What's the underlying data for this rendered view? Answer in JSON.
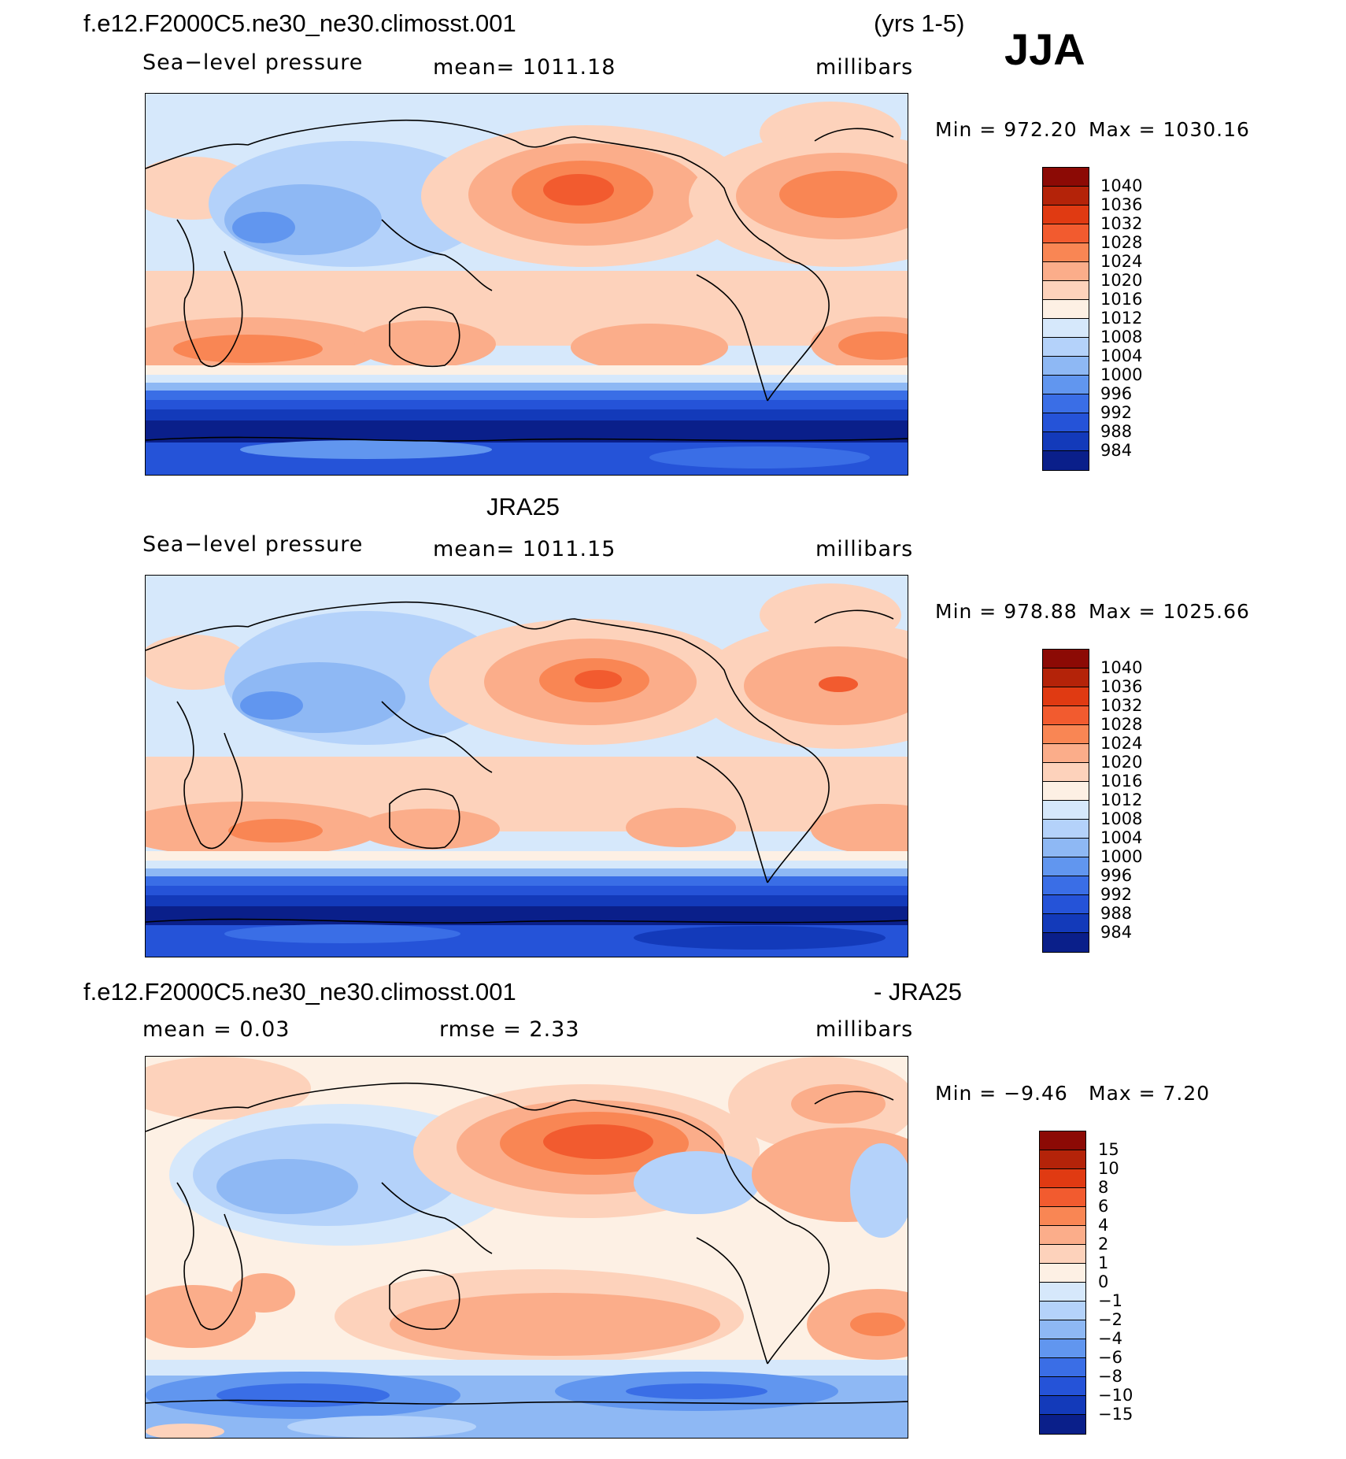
{
  "header": {
    "case_name": "f.e12.F2000C5.ne30_ne30.climosst.001",
    "years": "(yrs 1-5)",
    "season": "JJA"
  },
  "panels": [
    {
      "id": "model",
      "title_left": "",
      "title_right": "",
      "subtitle_left": "Sea−level pressure",
      "subtitle_mid": "mean=  1011.18",
      "units": "millibars",
      "min_label": "Min  =  972.20",
      "max_label": "Max  =  1030.16",
      "scale": "abs"
    },
    {
      "id": "obs",
      "title_left": "",
      "title_right": "",
      "center_title": "JRA25",
      "subtitle_left": "Sea−level pressure",
      "subtitle_mid": "mean=  1011.15",
      "units": "millibars",
      "min_label": "Min  =  978.88",
      "max_label": "Max  =  1025.66",
      "scale": "abs"
    },
    {
      "id": "diff",
      "title_left": "f.e12.F2000C5.ne30_ne30.climosst.001",
      "title_right": "- JRA25",
      "subtitle_left": "mean  =     0.03",
      "subtitle_mid": "rmse  =     2.33",
      "units": "millibars",
      "min_label": "Min  =    −9.46",
      "max_label": "Max  =     7.20",
      "scale": "diff"
    }
  ],
  "colorbars": {
    "abs": {
      "labels": [
        "1040",
        "1036",
        "1032",
        "1028",
        "1024",
        "1020",
        "1016",
        "1012",
        "1008",
        "1004",
        "1000",
        "996",
        "992",
        "988",
        "984"
      ],
      "colors": [
        "#8c0a05",
        "#b42309",
        "#e03a12",
        "#f25b2f",
        "#f98654",
        "#fbad8a",
        "#fdd2bb",
        "#fdf0e4",
        "#d6e8fb",
        "#b4d2fa",
        "#8eb8f4",
        "#6196ef",
        "#3a6ee6",
        "#2553d8",
        "#133aba",
        "#0a1f8a"
      ]
    },
    "diff": {
      "labels": [
        "15",
        "10",
        "8",
        "6",
        "4",
        "2",
        "1",
        "0",
        "−1",
        "−2",
        "−4",
        "−6",
        "−8",
        "−10",
        "−15"
      ],
      "colors": [
        "#8c0a05",
        "#b42309",
        "#e03a12",
        "#f25b2f",
        "#f98654",
        "#fbad8a",
        "#fdd2bb",
        "#fdf0e4",
        "#d6e8fb",
        "#b4d2fa",
        "#8eb8f4",
        "#6196ef",
        "#3a6ee6",
        "#2553d8",
        "#133aba",
        "#0a1f8a"
      ]
    }
  }
}
